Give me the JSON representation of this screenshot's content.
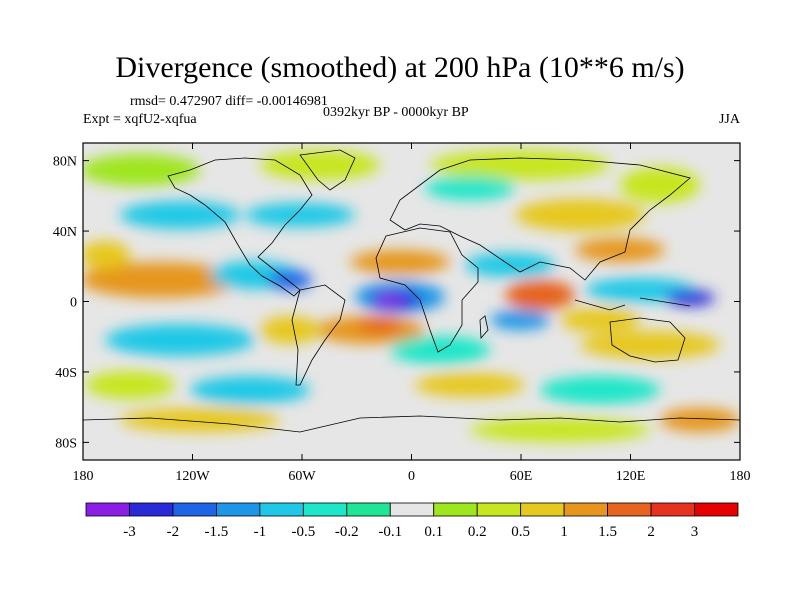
{
  "title": "Divergence (smoothed) at 200 hPa (10**6 m/s)",
  "stats": "rmsd= 0.472907 diff= -0.00146981",
  "experiment": "Expt = xqfU2-xqfua",
  "period": "0392kyr BP - 0000kyr BP",
  "season": "JJA",
  "chart_data": {
    "type": "heatmap",
    "x_ticks": [
      "180",
      "120W",
      "60W",
      "0",
      "60E",
      "120E",
      "180"
    ],
    "x_tick_values": [
      -180,
      -120,
      -60,
      0,
      60,
      120,
      180
    ],
    "y_ticks": [
      "80N",
      "40N",
      "0",
      "40S",
      "80S"
    ],
    "y_tick_values": [
      80,
      40,
      0,
      -40,
      -80
    ],
    "xlim": [
      -180,
      180
    ],
    "ylim": [
      -90,
      90
    ],
    "colorbar": {
      "labels": [
        "-3",
        "-2",
        "-1.5",
        "-1",
        "-0.5",
        "-0.2",
        "-0.1",
        "0.1",
        "0.2",
        "0.5",
        "1",
        "1.5",
        "2",
        "3"
      ],
      "colors": [
        "#8a1ee6",
        "#2a2ad8",
        "#1e64e6",
        "#1e96e6",
        "#1ec8e6",
        "#1ee6c8",
        "#1ee696",
        "#e6e6e6",
        "#9ee61e",
        "#c8e61e",
        "#e6c81e",
        "#e6961e",
        "#e6641e",
        "#e6321e",
        "#e60000"
      ]
    },
    "blobs": [
      {
        "region": "tropical-atlantic-min",
        "lon": -15,
        "lat": 0,
        "level": 0
      },
      {
        "region": "tropical-atlantic-min-core",
        "lon": -15,
        "lat": 0,
        "level": 1
      },
      {
        "region": "west-pacific-min",
        "lon": 150,
        "lat": 0,
        "level": 1
      },
      {
        "region": "northern-africa-max",
        "lon": 5,
        "lat": 12,
        "level": 12
      },
      {
        "region": "indian-ocean-max",
        "lon": 65,
        "lat": 2,
        "level": 12
      },
      {
        "region": "south-atlantic-max",
        "lon": -5,
        "lat": -22,
        "level": 12
      },
      {
        "region": "east-pacific-max",
        "lon": -150,
        "lat": 5,
        "level": 11
      },
      {
        "region": "asia-max",
        "lon": 120,
        "lat": 40,
        "level": 11
      }
    ]
  }
}
